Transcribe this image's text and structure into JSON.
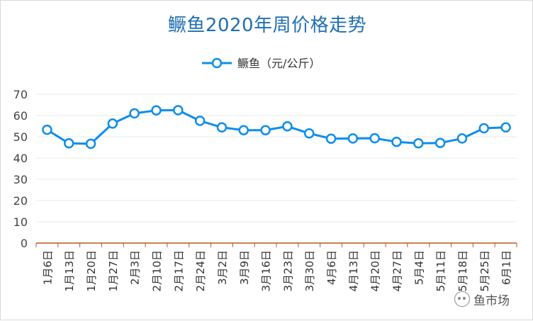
{
  "chart_data": {
    "type": "line",
    "title": "鳜鱼2020年周价格走势",
    "legend": {
      "position": "top",
      "entries": [
        "鳜鱼（元/公斤）"
      ]
    },
    "categories": [
      "1月6日",
      "1月13日",
      "1月20日",
      "1月27日",
      "2月3日",
      "2月10日",
      "2月17日",
      "2月24日",
      "3月2日",
      "3月9日",
      "3月16日",
      "3月23日",
      "3月30日",
      "4月6日",
      "4月13日",
      "4月20日",
      "4月27日",
      "5月4日",
      "5月11日",
      "5月18日",
      "5月25日",
      "6月1日"
    ],
    "series": [
      {
        "name": "鳜鱼（元/公斤）",
        "values": [
          53.3,
          46.9,
          46.7,
          56.2,
          61.0,
          62.4,
          62.5,
          57.5,
          54.4,
          53.1,
          53.1,
          54.9,
          51.6,
          49.1,
          49.2,
          49.3,
          47.6,
          46.9,
          47.1,
          49.2,
          54.0,
          54.4
        ]
      }
    ],
    "yticks": [
      "0",
      "10",
      "20",
      "30",
      "40",
      "50",
      "60",
      "70"
    ],
    "ylim": [
      0,
      70
    ],
    "grid": true,
    "colors": {
      "line": "#0e8ee9",
      "marker_fill": "#ffffff",
      "grid": "#e8e8e8",
      "axis": "#b35a1f",
      "title": "#1f6fb2"
    }
  },
  "watermark": {
    "text": "鱼市场",
    "icon": "wechat-icon"
  }
}
